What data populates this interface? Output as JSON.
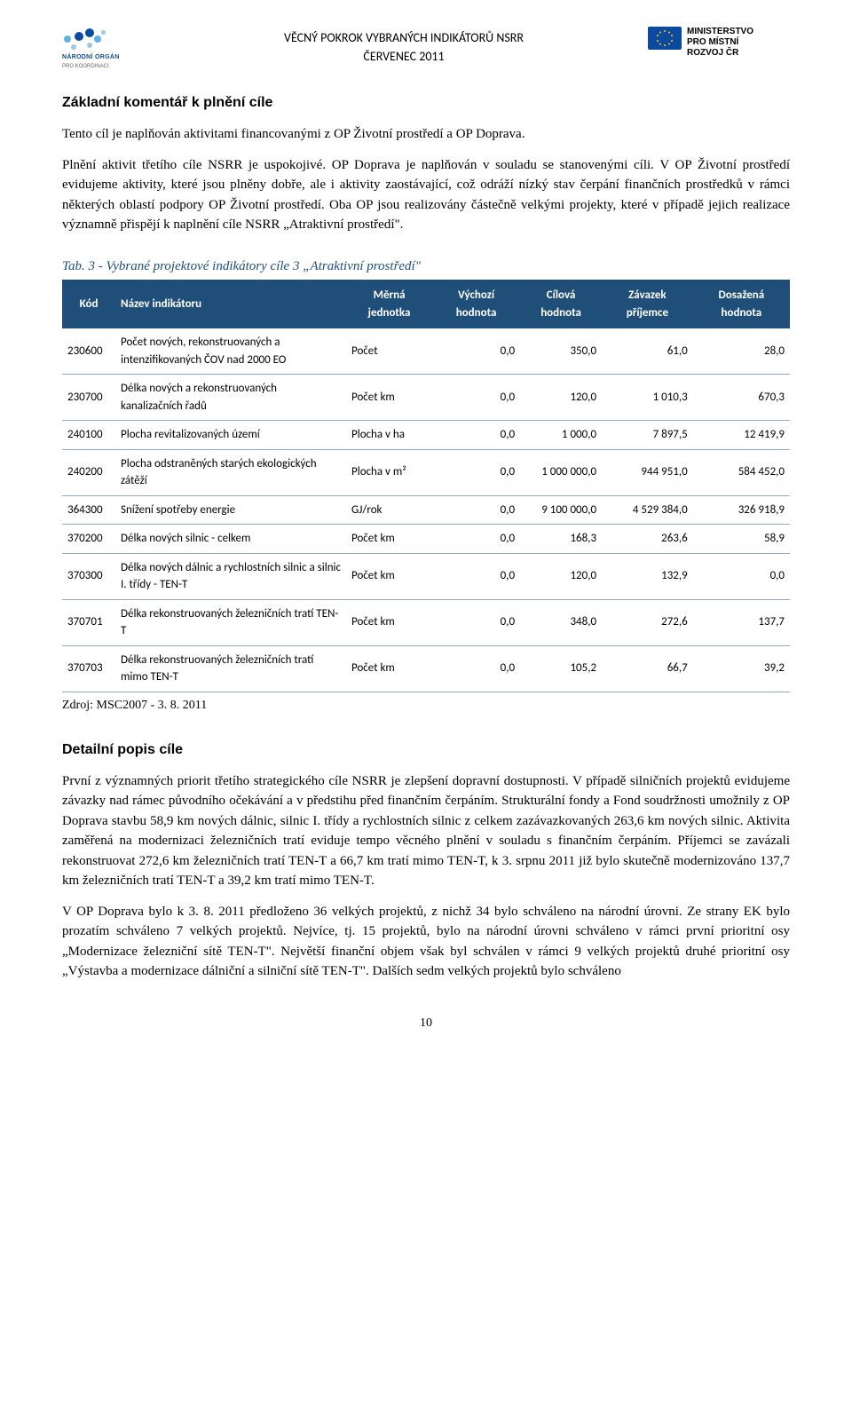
{
  "header": {
    "title_line1": "VĚCNÝ POKROK VYBRANÝCH INDIKÁTORŮ NSRR",
    "title_line2": "ČERVENEC 2011",
    "logo_left_name": "NÁRODNÍ ORGÁN",
    "logo_left_sub": "PRO KOORDINACI",
    "logo_right_line1": "MINISTERSTVO",
    "logo_right_line2": "PRO MÍSTNÍ",
    "logo_right_line3": "ROZVOJ ČR"
  },
  "colors": {
    "table_header_bg": "#1f4e79",
    "table_header_fg": "#ffffff",
    "row_border": "#8ea9c9",
    "caption_color": "#1f4e79",
    "eu_flag_bg": "#0b4a9e",
    "eu_star": "#ffcc00",
    "dot_colors": [
      "#0b4a9e",
      "#5fb0e6",
      "#9cc8e8"
    ]
  },
  "section1": {
    "heading": "Základní komentář k plnění cíle",
    "p1": "Tento cíl je naplňován aktivitami financovanými z OP Životní prostředí a OP Doprava.",
    "p2": "Plnění aktivit třetího cíle NSRR je uspokojivé. OP Doprava je naplňován v souladu se stanovenými cíli. V OP Životní prostředí evidujeme aktivity, které jsou plněny dobře, ale i aktivity zaostávající, což odráží nízký stav čerpání finančních prostředků v rámci některých oblastí podpory OP Životní prostředí. Oba OP jsou realizovány částečně velkými projekty, které v případě jejich realizace významně přispějí k naplnění cíle NSRR „Atraktivní prostředí\"."
  },
  "table": {
    "caption": "Tab. 3 - Vybrané projektové indikátory cíle 3 „Atraktivní prostředí\"",
    "columns": [
      "Kód",
      "Název indikátoru",
      "Měrná jednotka",
      "Výchozí hodnota",
      "Cílová hodnota",
      "Závazek příjemce",
      "Dosažená hodnota"
    ],
    "rows": [
      [
        "230600",
        "Počet nových, rekonstruovaných a intenzifikovaných ČOV nad 2000 EO",
        "Počet",
        "0,0",
        "350,0",
        "61,0",
        "28,0"
      ],
      [
        "230700",
        "Délka nových a rekonstruovaných kanalizačních řadů",
        "Počet km",
        "0,0",
        "120,0",
        "1 010,3",
        "670,3"
      ],
      [
        "240100",
        "Plocha revitalizovaných území",
        "Plocha v ha",
        "0,0",
        "1 000,0",
        "7 897,5",
        "12 419,9"
      ],
      [
        "240200",
        "Plocha odstraněných starých ekologických zátěží",
        "Plocha v m²",
        "0,0",
        "1 000 000,0",
        "944 951,0",
        "584 452,0"
      ],
      [
        "364300",
        "Snížení spotřeby energie",
        "GJ/rok",
        "0,0",
        "9 100 000,0",
        "4 529 384,0",
        "326 918,9"
      ],
      [
        "370200",
        "Délka nových silnic - celkem",
        "Počet km",
        "0,0",
        "168,3",
        "263,6",
        "58,9"
      ],
      [
        "370300",
        "Délka nových dálnic a rychlostních silnic a silnic I. třídy - TEN-T",
        "Počet km",
        "0,0",
        "120,0",
        "132,9",
        "0,0"
      ],
      [
        "370701",
        "Délka rekonstruovaných železničních tratí TEN-T",
        "Počet km",
        "0,0",
        "348,0",
        "272,6",
        "137,7"
      ],
      [
        "370703",
        "Délka rekonstruovaných železničních tratí mimo TEN-T",
        "Počet km",
        "0,0",
        "105,2",
        "66,7",
        "39,2"
      ]
    ],
    "source": "Zdroj: MSC2007 - 3. 8. 2011"
  },
  "section2": {
    "heading": "Detailní popis cíle",
    "p1": "První z významných priorit třetího strategického cíle NSRR je zlepšení dopravní dostupnosti. V případě silničních projektů evidujeme závazky nad rámec původního očekávání a v předstihu před finančním čerpáním. Strukturální fondy a Fond soudržnosti umožnily z OP Doprava stavbu 58,9 km nových dálnic, silnic I. třídy a rychlostních silnic z celkem zazávazkovaných 263,6 km nových silnic. Aktivita zaměřená na modernizaci železničních tratí eviduje tempo věcného plnění v souladu s finančním čerpáním. Příjemci se zavázali rekonstruovat 272,6 km železničních tratí TEN-T a 66,7 km tratí mimo TEN-T, k 3. srpnu 2011 již bylo skutečně modernizováno 137,7 km železničních tratí TEN-T a 39,2 km tratí mimo TEN-T.",
    "p2": "V OP Doprava bylo k 3. 8. 2011 předloženo 36 velkých projektů, z nichž 34 bylo schváleno na národní úrovni. Ze strany EK bylo prozatím schváleno 7 velkých projektů. Nejvíce, tj. 15 projektů, bylo na národní úrovni schváleno v rámci první prioritní osy „Modernizace železniční sítě TEN-T\". Největší finanční objem však byl schválen v rámci 9 velkých projektů druhé prioritní osy „Výstavba a modernizace dálniční a silniční sítě TEN-T\". Dalších sedm velkých projektů bylo schváleno"
  },
  "page_number": "10"
}
